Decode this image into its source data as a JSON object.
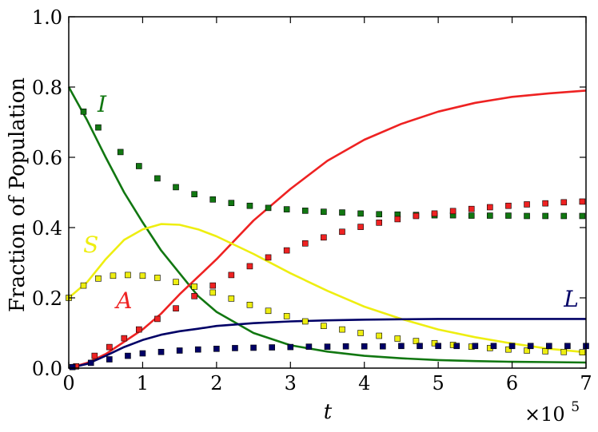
{
  "chart_data": {
    "type": "line",
    "title": "",
    "xlabel": "t",
    "ylabel": "Fraction of Population",
    "x_multiplier_label": "×10",
    "x_multiplier_exponent": "5",
    "xlim": [
      0,
      7
    ],
    "ylim": [
      0,
      1
    ],
    "xticks": [
      "0",
      "1",
      "2",
      "3",
      "4",
      "5",
      "6",
      "7"
    ],
    "yticks": [
      "0.0",
      "0.2",
      "0.4",
      "0.6",
      "0.8",
      "1.0"
    ],
    "grid": false,
    "legend": "none",
    "series": [
      {
        "name": "I",
        "color": "#117711",
        "style": "line",
        "x": [
          0,
          0.25,
          0.5,
          0.75,
          1.0,
          1.25,
          1.5,
          1.75,
          2.0,
          2.5,
          3.0,
          3.5,
          4.0,
          4.5,
          5.0,
          5.5,
          6.0,
          6.5,
          7.0
        ],
        "y": [
          0.8,
          0.705,
          0.6,
          0.5,
          0.415,
          0.335,
          0.27,
          0.205,
          0.16,
          0.1,
          0.065,
          0.047,
          0.035,
          0.028,
          0.023,
          0.02,
          0.018,
          0.017,
          0.016
        ]
      },
      {
        "name": "A",
        "color": "#ee2222",
        "style": "line",
        "x": [
          0,
          0.25,
          0.5,
          0.75,
          1.0,
          1.25,
          1.5,
          1.75,
          2.0,
          2.5,
          3.0,
          3.5,
          4.0,
          4.5,
          5.0,
          5.5,
          6.0,
          6.5,
          7.0
        ],
        "y": [
          0.0,
          0.015,
          0.04,
          0.075,
          0.11,
          0.155,
          0.21,
          0.26,
          0.31,
          0.42,
          0.51,
          0.59,
          0.65,
          0.695,
          0.73,
          0.755,
          0.772,
          0.782,
          0.79
        ]
      },
      {
        "name": "S",
        "color": "#eeee11",
        "style": "line",
        "x": [
          0,
          0.25,
          0.5,
          0.75,
          1.0,
          1.25,
          1.5,
          1.75,
          2.0,
          2.5,
          3.0,
          3.5,
          4.0,
          4.5,
          5.0,
          5.5,
          6.0,
          6.5,
          7.0
        ],
        "y": [
          0.2,
          0.245,
          0.31,
          0.365,
          0.395,
          0.41,
          0.408,
          0.395,
          0.375,
          0.325,
          0.27,
          0.22,
          0.175,
          0.14,
          0.11,
          0.088,
          0.07,
          0.055,
          0.045
        ]
      },
      {
        "name": "L",
        "color": "#000066",
        "style": "line",
        "x": [
          0,
          0.25,
          0.5,
          0.75,
          1.0,
          1.25,
          1.5,
          1.75,
          2.0,
          2.5,
          3.0,
          3.5,
          4.0,
          4.5,
          5.0,
          5.5,
          6.0,
          6.5,
          7.0
        ],
        "y": [
          0.0,
          0.012,
          0.035,
          0.06,
          0.08,
          0.095,
          0.105,
          0.112,
          0.12,
          0.128,
          0.133,
          0.136,
          0.138,
          0.139,
          0.14,
          0.14,
          0.14,
          0.14,
          0.14
        ]
      },
      {
        "name": "I",
        "color": "#117711",
        "style": "markers",
        "x": [
          0.2,
          0.4,
          0.7,
          0.95,
          1.2,
          1.45,
          1.7,
          1.95,
          2.2,
          2.45,
          2.7,
          2.95,
          3.2,
          3.45,
          3.7,
          3.95,
          4.2,
          4.45,
          4.7,
          4.95,
          5.2,
          5.45,
          5.7,
          5.95,
          6.2,
          6.45,
          6.7,
          6.95
        ],
        "y": [
          0.73,
          0.685,
          0.615,
          0.575,
          0.54,
          0.515,
          0.495,
          0.48,
          0.47,
          0.462,
          0.456,
          0.452,
          0.448,
          0.445,
          0.443,
          0.44,
          0.438,
          0.437,
          0.436,
          0.435,
          0.435,
          0.434,
          0.434,
          0.434,
          0.433,
          0.433,
          0.433,
          0.433
        ]
      },
      {
        "name": "A",
        "color": "#ee2222",
        "style": "markers",
        "x": [
          0.1,
          0.35,
          0.55,
          0.75,
          0.95,
          1.2,
          1.45,
          1.7,
          1.95,
          2.2,
          2.45,
          2.7,
          2.95,
          3.2,
          3.45,
          3.7,
          3.95,
          4.2,
          4.45,
          4.7,
          4.95,
          5.2,
          5.45,
          5.7,
          5.95,
          6.2,
          6.45,
          6.7,
          6.95
        ],
        "y": [
          0.005,
          0.035,
          0.06,
          0.085,
          0.11,
          0.14,
          0.17,
          0.205,
          0.235,
          0.265,
          0.29,
          0.315,
          0.335,
          0.355,
          0.372,
          0.388,
          0.402,
          0.414,
          0.424,
          0.433,
          0.44,
          0.447,
          0.453,
          0.458,
          0.462,
          0.466,
          0.469,
          0.472,
          0.474
        ]
      },
      {
        "name": "S",
        "color": "#eeee11",
        "style": "markers",
        "x": [
          0.0,
          0.2,
          0.4,
          0.6,
          0.8,
          1.0,
          1.2,
          1.45,
          1.7,
          1.95,
          2.2,
          2.45,
          2.7,
          2.95,
          3.2,
          3.45,
          3.7,
          3.95,
          4.2,
          4.45,
          4.7,
          4.95,
          5.2,
          5.45,
          5.7,
          5.95,
          6.2,
          6.45,
          6.7,
          6.95
        ],
        "y": [
          0.2,
          0.235,
          0.255,
          0.263,
          0.265,
          0.263,
          0.257,
          0.245,
          0.232,
          0.215,
          0.198,
          0.18,
          0.163,
          0.148,
          0.133,
          0.12,
          0.11,
          0.1,
          0.092,
          0.084,
          0.077,
          0.071,
          0.066,
          0.061,
          0.057,
          0.053,
          0.05,
          0.048,
          0.046,
          0.045
        ]
      },
      {
        "name": "L",
        "color": "#000066",
        "style": "markers",
        "x": [
          0.05,
          0.3,
          0.55,
          0.8,
          1.0,
          1.25,
          1.5,
          1.75,
          2.0,
          2.25,
          2.5,
          2.75,
          3.0,
          3.25,
          3.5,
          3.75,
          4.0,
          4.25,
          4.5,
          4.75,
          5.0,
          5.25,
          5.5,
          5.75,
          6.0,
          6.25,
          6.5,
          6.75,
          7.0
        ],
        "y": [
          0.003,
          0.015,
          0.025,
          0.035,
          0.042,
          0.046,
          0.05,
          0.053,
          0.055,
          0.057,
          0.058,
          0.059,
          0.06,
          0.061,
          0.061,
          0.062,
          0.062,
          0.062,
          0.063,
          0.063,
          0.063,
          0.063,
          0.063,
          0.063,
          0.063,
          0.063,
          0.063,
          0.063,
          0.063
        ]
      }
    ],
    "annotations": [
      {
        "text": "I",
        "color": "#117711",
        "x": 0.45,
        "y": 0.73
      },
      {
        "text": "S",
        "color": "#eeee11",
        "x": 0.3,
        "y": 0.33
      },
      {
        "text": "A",
        "color": "#ee2222",
        "x": 0.75,
        "y": 0.17
      },
      {
        "text": "L",
        "color": "#000066",
        "x": 6.8,
        "y": 0.175
      }
    ]
  }
}
